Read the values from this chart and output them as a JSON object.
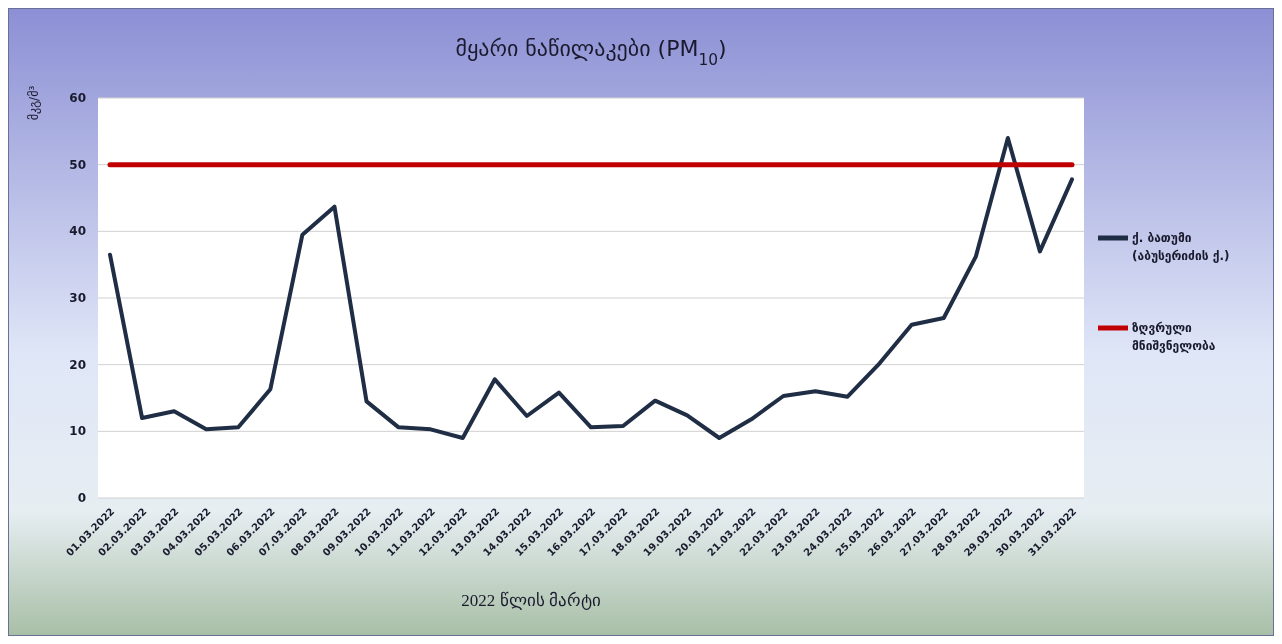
{
  "chart_data": {
    "type": "line",
    "title": "მყარი ნაწილაკები (PM$_{10}$)",
    "xlabel": "2022 წლის მარტი",
    "ylabel": "მკგ/მ³",
    "categories": [
      "01.03.2022",
      "02.03.2022",
      "03.03.2022",
      "04.03.2022",
      "05.03.2022",
      "06.03.2022",
      "07.03.2022",
      "08.03.2022",
      "09.03.2022",
      "10.03.2022",
      "11.03.2022",
      "12.03.2022",
      "13.03.2022",
      "14.03.2022",
      "15.03.2022",
      "16.03.2022",
      "17.03.2022",
      "18.03.2022",
      "19.03.2022",
      "20.03.2022",
      "21.03.2022",
      "22.03.2022",
      "23.03.2022",
      "24.03.2022",
      "25.03.2022",
      "26.03.2022",
      "27.03.2022",
      "28.03.2022",
      "29.03.2022",
      "30.03.2022",
      "31.03.2022"
    ],
    "series": [
      {
        "name": "ქ. ბათუმი (აბუსერიძის ქ.)",
        "color": "#1f2d45",
        "values": [
          36.5,
          12,
          13,
          10.3,
          10.6,
          16.3,
          39.5,
          43.7,
          14.5,
          10.6,
          10.3,
          9,
          17.8,
          12.3,
          15.8,
          10.6,
          10.8,
          14.6,
          12.4,
          9,
          11.8,
          15.3,
          16,
          15.2,
          20.2,
          26,
          27,
          36.2,
          54,
          37,
          47.8
        ]
      },
      {
        "name": "ზღვრული მნიშვნელობა",
        "color": "#c00000",
        "values": [
          50,
          50,
          50,
          50,
          50,
          50,
          50,
          50,
          50,
          50,
          50,
          50,
          50,
          50,
          50,
          50,
          50,
          50,
          50,
          50,
          50,
          50,
          50,
          50,
          50,
          50,
          50,
          50,
          50,
          50,
          50
        ]
      }
    ],
    "ylim": [
      0,
      60
    ],
    "yticks": [
      0,
      10,
      20,
      30,
      40,
      50,
      60
    ],
    "grid": "y",
    "legend": "right",
    "marker": "none",
    "line_style": "solid"
  }
}
